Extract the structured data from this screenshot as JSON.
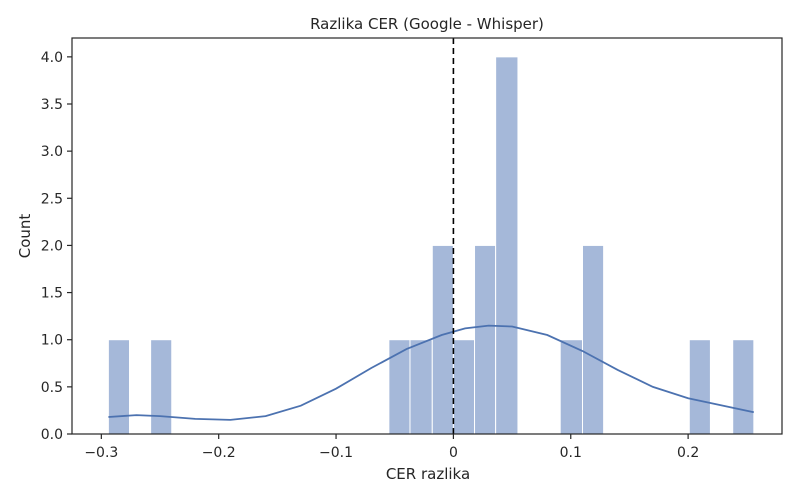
{
  "chart_data": {
    "type": "histogram",
    "title": "Razlika CER (Google - Whisper)",
    "xlabel": "CER razlika",
    "ylabel": "Count",
    "xlim": [
      -0.325,
      0.28
    ],
    "ylim": [
      0,
      4.2
    ],
    "xticks": [
      -0.3,
      -0.2,
      -0.1,
      0.0,
      0.1,
      0.2
    ],
    "xtick_labels": [
      "−0.3",
      "−0.2",
      "−0.1",
      "0",
      "0.1",
      "0.2"
    ],
    "yticks": [
      0,
      0.5,
      1,
      1.5,
      2,
      2.5,
      3,
      3.5,
      4
    ],
    "ytick_labels": [
      "0.0",
      "0.5",
      "1.0",
      "1.5",
      "2.0",
      "2.5",
      "3.0",
      "3.5",
      "4.0"
    ],
    "bins": [
      {
        "x0": -0.294,
        "x1": -0.276,
        "count": 1
      },
      {
        "x0": -0.258,
        "x1": -0.24,
        "count": 1
      },
      {
        "x0": -0.055,
        "x1": -0.037,
        "count": 1
      },
      {
        "x0": -0.037,
        "x1": -0.018,
        "count": 1
      },
      {
        "x0": -0.018,
        "x1": 0.0,
        "count": 2
      },
      {
        "x0": 0.0,
        "x1": 0.018,
        "count": 1
      },
      {
        "x0": 0.018,
        "x1": 0.036,
        "count": 2
      },
      {
        "x0": 0.036,
        "x1": 0.055,
        "count": 4
      },
      {
        "x0": 0.091,
        "x1": 0.11,
        "count": 1
      },
      {
        "x0": 0.11,
        "x1": 0.128,
        "count": 2
      },
      {
        "x0": 0.201,
        "x1": 0.219,
        "count": 1
      },
      {
        "x0": 0.238,
        "x1": 0.256,
        "count": 1
      }
    ],
    "kde": {
      "x": [
        -0.294,
        -0.27,
        -0.25,
        -0.22,
        -0.19,
        -0.16,
        -0.13,
        -0.1,
        -0.07,
        -0.04,
        -0.01,
        0.01,
        0.03,
        0.05,
        0.08,
        0.11,
        0.14,
        0.17,
        0.2,
        0.23,
        0.256
      ],
      "y": [
        0.18,
        0.2,
        0.19,
        0.16,
        0.15,
        0.19,
        0.3,
        0.48,
        0.7,
        0.9,
        1.05,
        1.12,
        1.15,
        1.14,
        1.05,
        0.88,
        0.68,
        0.5,
        0.38,
        0.3,
        0.23
      ]
    },
    "reference_line": {
      "x": 0.0,
      "style": "dashed",
      "color": "#000000"
    },
    "colors": {
      "bar": "#a5b8d9",
      "bar_edge": "#ffffff",
      "kde": "#4c72b0"
    }
  }
}
